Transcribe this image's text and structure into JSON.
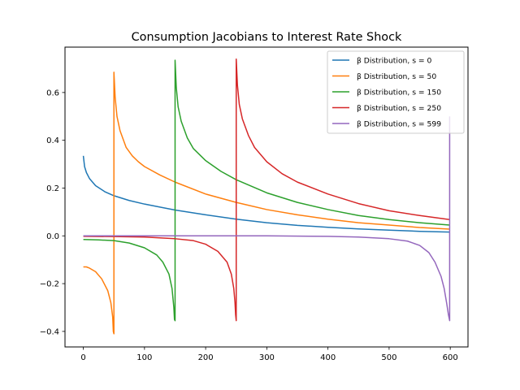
{
  "chart_data": {
    "type": "line",
    "title": "Consumption Jacobians to Interest Rate Shock",
    "xlabel": "",
    "ylabel": "",
    "xlim": [
      -30,
      629
    ],
    "ylim": [
      -0.465,
      0.79
    ],
    "xticks": [
      0,
      100,
      200,
      300,
      400,
      500,
      600
    ],
    "yticks": [
      -0.4,
      -0.2,
      0.0,
      0.2,
      0.4,
      0.6
    ],
    "ytick_labels": [
      "−0.4",
      "−0.2",
      "0.0",
      "0.2",
      "0.4",
      "0.6"
    ],
    "grid": false,
    "legend_position": "top-right",
    "series": [
      {
        "name": "β Distribution, s = 0",
        "color": "#1f77b4",
        "points": [
          [
            0,
            0.335
          ],
          [
            2,
            0.29
          ],
          [
            5,
            0.265
          ],
          [
            10,
            0.24
          ],
          [
            20,
            0.21
          ],
          [
            35,
            0.185
          ],
          [
            50,
            0.168
          ],
          [
            75,
            0.148
          ],
          [
            100,
            0.133
          ],
          [
            150,
            0.108
          ],
          [
            200,
            0.088
          ],
          [
            250,
            0.07
          ],
          [
            300,
            0.055
          ],
          [
            350,
            0.044
          ],
          [
            400,
            0.036
          ],
          [
            450,
            0.029
          ],
          [
            500,
            0.024
          ],
          [
            550,
            0.019
          ],
          [
            599,
            0.016
          ]
        ]
      },
      {
        "name": "β Distribution, s = 50",
        "color": "#ff7f0e",
        "points": [
          [
            0,
            -0.13
          ],
          [
            5,
            -0.13
          ],
          [
            10,
            -0.135
          ],
          [
            20,
            -0.15
          ],
          [
            30,
            -0.18
          ],
          [
            40,
            -0.23
          ],
          [
            45,
            -0.28
          ],
          [
            48,
            -0.34
          ],
          [
            49,
            -0.4
          ],
          [
            50,
            -0.41
          ],
          [
            50,
            0.685
          ],
          [
            52,
            0.58
          ],
          [
            55,
            0.5
          ],
          [
            60,
            0.44
          ],
          [
            70,
            0.37
          ],
          [
            80,
            0.335
          ],
          [
            90,
            0.31
          ],
          [
            100,
            0.29
          ],
          [
            125,
            0.255
          ],
          [
            150,
            0.225
          ],
          [
            200,
            0.175
          ],
          [
            250,
            0.14
          ],
          [
            300,
            0.11
          ],
          [
            350,
            0.088
          ],
          [
            400,
            0.07
          ],
          [
            450,
            0.055
          ],
          [
            500,
            0.045
          ],
          [
            550,
            0.035
          ],
          [
            599,
            0.028
          ]
        ]
      },
      {
        "name": "β Distribution, s = 150",
        "color": "#2ca02c",
        "points": [
          [
            0,
            -0.015
          ],
          [
            25,
            -0.017
          ],
          [
            50,
            -0.02
          ],
          [
            75,
            -0.03
          ],
          [
            100,
            -0.05
          ],
          [
            120,
            -0.08
          ],
          [
            130,
            -0.11
          ],
          [
            140,
            -0.16
          ],
          [
            145,
            -0.22
          ],
          [
            148,
            -0.3
          ],
          [
            149,
            -0.35
          ],
          [
            150,
            -0.355
          ],
          [
            150,
            0.735
          ],
          [
            152,
            0.62
          ],
          [
            155,
            0.54
          ],
          [
            160,
            0.48
          ],
          [
            170,
            0.41
          ],
          [
            180,
            0.365
          ],
          [
            200,
            0.315
          ],
          [
            225,
            0.27
          ],
          [
            250,
            0.235
          ],
          [
            300,
            0.18
          ],
          [
            350,
            0.14
          ],
          [
            400,
            0.11
          ],
          [
            450,
            0.085
          ],
          [
            500,
            0.068
          ],
          [
            550,
            0.055
          ],
          [
            599,
            0.045
          ]
        ]
      },
      {
        "name": "β Distribution, s = 250",
        "color": "#d62728",
        "points": [
          [
            0,
            -0.002
          ],
          [
            50,
            -0.003
          ],
          [
            100,
            -0.005
          ],
          [
            150,
            -0.012
          ],
          [
            180,
            -0.02
          ],
          [
            200,
            -0.035
          ],
          [
            220,
            -0.065
          ],
          [
            235,
            -0.11
          ],
          [
            242,
            -0.16
          ],
          [
            246,
            -0.22
          ],
          [
            248,
            -0.28
          ],
          [
            249,
            -0.33
          ],
          [
            250,
            -0.355
          ],
          [
            250,
            0.74
          ],
          [
            252,
            0.63
          ],
          [
            255,
            0.55
          ],
          [
            260,
            0.49
          ],
          [
            270,
            0.42
          ],
          [
            280,
            0.37
          ],
          [
            300,
            0.31
          ],
          [
            325,
            0.26
          ],
          [
            350,
            0.225
          ],
          [
            400,
            0.175
          ],
          [
            450,
            0.135
          ],
          [
            500,
            0.105
          ],
          [
            550,
            0.085
          ],
          [
            599,
            0.068
          ]
        ]
      },
      {
        "name": "β Distribution, s = 599",
        "color": "#9467bd",
        "points": [
          [
            0,
            0.0
          ],
          [
            100,
            0.0
          ],
          [
            200,
            0.0
          ],
          [
            300,
            0.0
          ],
          [
            400,
            -0.002
          ],
          [
            450,
            -0.005
          ],
          [
            500,
            -0.012
          ],
          [
            530,
            -0.022
          ],
          [
            550,
            -0.04
          ],
          [
            565,
            -0.07
          ],
          [
            575,
            -0.11
          ],
          [
            585,
            -0.17
          ],
          [
            590,
            -0.22
          ],
          [
            594,
            -0.28
          ],
          [
            597,
            -0.33
          ],
          [
            599,
            -0.355
          ],
          [
            599,
            0.5
          ]
        ]
      }
    ]
  }
}
